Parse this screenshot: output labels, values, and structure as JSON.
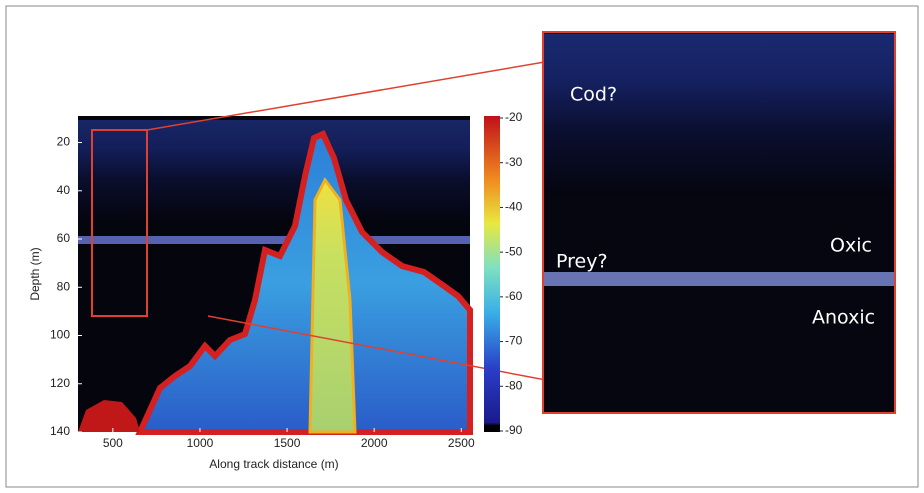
{
  "chart_data": {
    "type": "echogram",
    "x_label": "Along track distance (m)",
    "y_label": "Depth (m)",
    "xlim": [
      300,
      2550
    ],
    "xticks": [
      500,
      1000,
      1500,
      2000,
      2500
    ],
    "ylim": [
      9,
      140
    ],
    "yticks": [
      20,
      40,
      60,
      80,
      100,
      120,
      140
    ],
    "colorbar": {
      "lim": [
        -90,
        -20
      ],
      "ticks": [
        -20,
        -30,
        -40,
        -50,
        -60,
        -70,
        -80,
        -90
      ]
    },
    "annotations": [
      "Cod?",
      "Prey?",
      "Oxic",
      "Anoxic"
    ]
  }
}
